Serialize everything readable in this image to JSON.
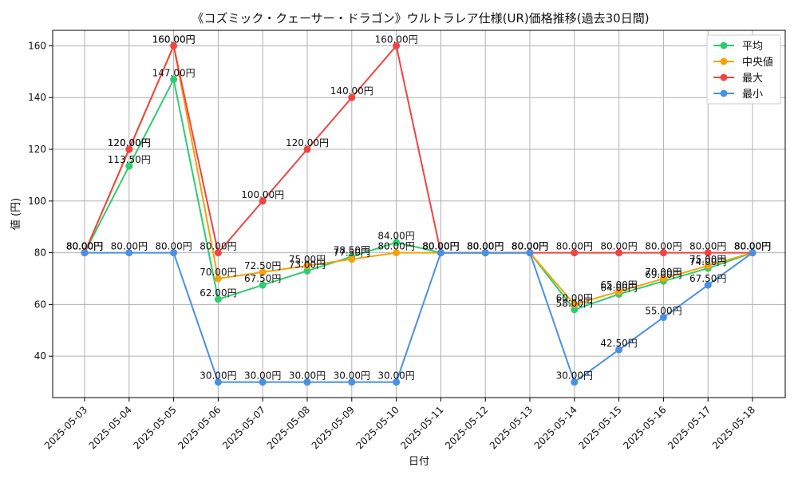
{
  "chart_data": {
    "type": "line",
    "title": "《コズミック・クェーサー・ドラゴン》ウルトラレア仕様(UR)価格推移(過去30日間)",
    "xlabel": "日付",
    "ylabel": "値 (円)",
    "ylim": [
      24,
      166
    ],
    "yticks": [
      40,
      60,
      80,
      100,
      120,
      140,
      160
    ],
    "grid": true,
    "legend_position": "top-right",
    "label_suffix": "円",
    "categories": [
      "2025-05-03",
      "2025-05-04",
      "2025-05-05",
      "2025-05-06",
      "2025-05-07",
      "2025-05-08",
      "2025-05-09",
      "2025-05-10",
      "2025-05-11",
      "2025-05-12",
      "2025-05-13",
      "2025-05-14",
      "2025-05-15",
      "2025-05-16",
      "2025-05-17",
      "2025-05-18"
    ],
    "series": [
      {
        "name": "平均",
        "color": "#2ecc71",
        "values": [
          80,
          113.5,
          147,
          62,
          67.5,
          73,
          78.5,
          84,
          80,
          80,
          80,
          58,
          64,
          69,
          74,
          80
        ]
      },
      {
        "name": "中央値",
        "color": "#f5a20a",
        "values": [
          80,
          120,
          160,
          70,
          72.5,
          75,
          77.5,
          80,
          80,
          80,
          80,
          60,
          65,
          70,
          75,
          80
        ]
      },
      {
        "name": "最大",
        "color": "#ef4444",
        "values": [
          80,
          120,
          160,
          80,
          100,
          120,
          140,
          160,
          80,
          80,
          80,
          80,
          80,
          80,
          80,
          80
        ]
      },
      {
        "name": "最小",
        "color": "#4a90e2",
        "values": [
          80,
          80,
          80,
          30,
          30,
          30,
          30,
          30,
          80,
          80,
          80,
          30,
          42.5,
          55,
          67.5,
          80
        ]
      }
    ]
  }
}
